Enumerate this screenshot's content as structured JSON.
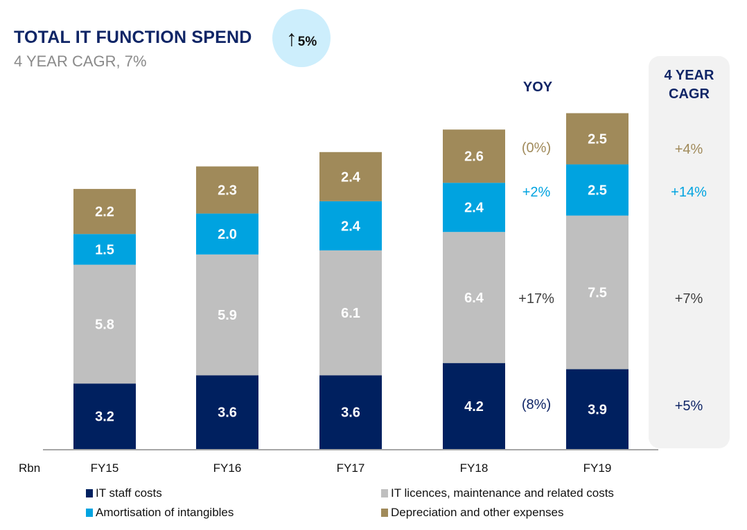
{
  "header": {
    "title": "TOTAL IT FUNCTION SPEND",
    "subtitle": "4 YEAR CAGR, 7%",
    "badge_arrow": "↑",
    "badge_value": "5%"
  },
  "yoy": {
    "heading": "YOY",
    "values": [
      "(0%)",
      "+2%",
      "+17%",
      "(8%)"
    ]
  },
  "cagr": {
    "heading_line1": "4 YEAR",
    "heading_line2": "CAGR",
    "values": [
      "+4%",
      "+14%",
      "+7%",
      "+5%"
    ]
  },
  "colors": {
    "staff": "#00205f",
    "licences": "#bfbfbf",
    "amortisation": "#00a3e0",
    "depreciation": "#a08a5a",
    "axis": "#a6a6a6",
    "title": "#0f2566"
  },
  "chart_data": {
    "type": "bar",
    "stacked": true,
    "title": "TOTAL IT FUNCTION SPEND",
    "subtitle": "4 YEAR CAGR, 7%",
    "unit_label": "Rbn",
    "categories": [
      "FY15",
      "FY16",
      "FY17",
      "FY18",
      "FY19"
    ],
    "series": [
      {
        "name": "IT staff costs",
        "key": "staff",
        "values": [
          3.2,
          3.6,
          3.6,
          4.2,
          3.9
        ]
      },
      {
        "name": "IT licences, maintenance and related costs",
        "key": "licences",
        "values": [
          5.8,
          5.9,
          6.1,
          6.4,
          7.5
        ]
      },
      {
        "name": "Amortisation of intangibles",
        "key": "amortisation",
        "values": [
          1.5,
          2.0,
          2.4,
          2.4,
          2.5
        ]
      },
      {
        "name": "Depreciation and other expenses",
        "key": "depreciation",
        "values": [
          2.2,
          2.3,
          2.4,
          2.6,
          2.5
        ]
      }
    ],
    "yoy_change": {
      "depreciation": "(0%)",
      "amortisation": "+2%",
      "licences": "+17%",
      "staff": "(8%)"
    },
    "cagr_4yr": {
      "depreciation": "+4%",
      "amortisation": "+14%",
      "licences": "+7%",
      "staff": "+5%"
    },
    "legend": [
      "IT staff costs",
      "IT licences, maintenance and related costs",
      "Amortisation of intangibles",
      "Depreciation and other expenses"
    ],
    "legend_position": "bottom",
    "grid": false,
    "ylim": [
      0,
      16.5
    ]
  }
}
